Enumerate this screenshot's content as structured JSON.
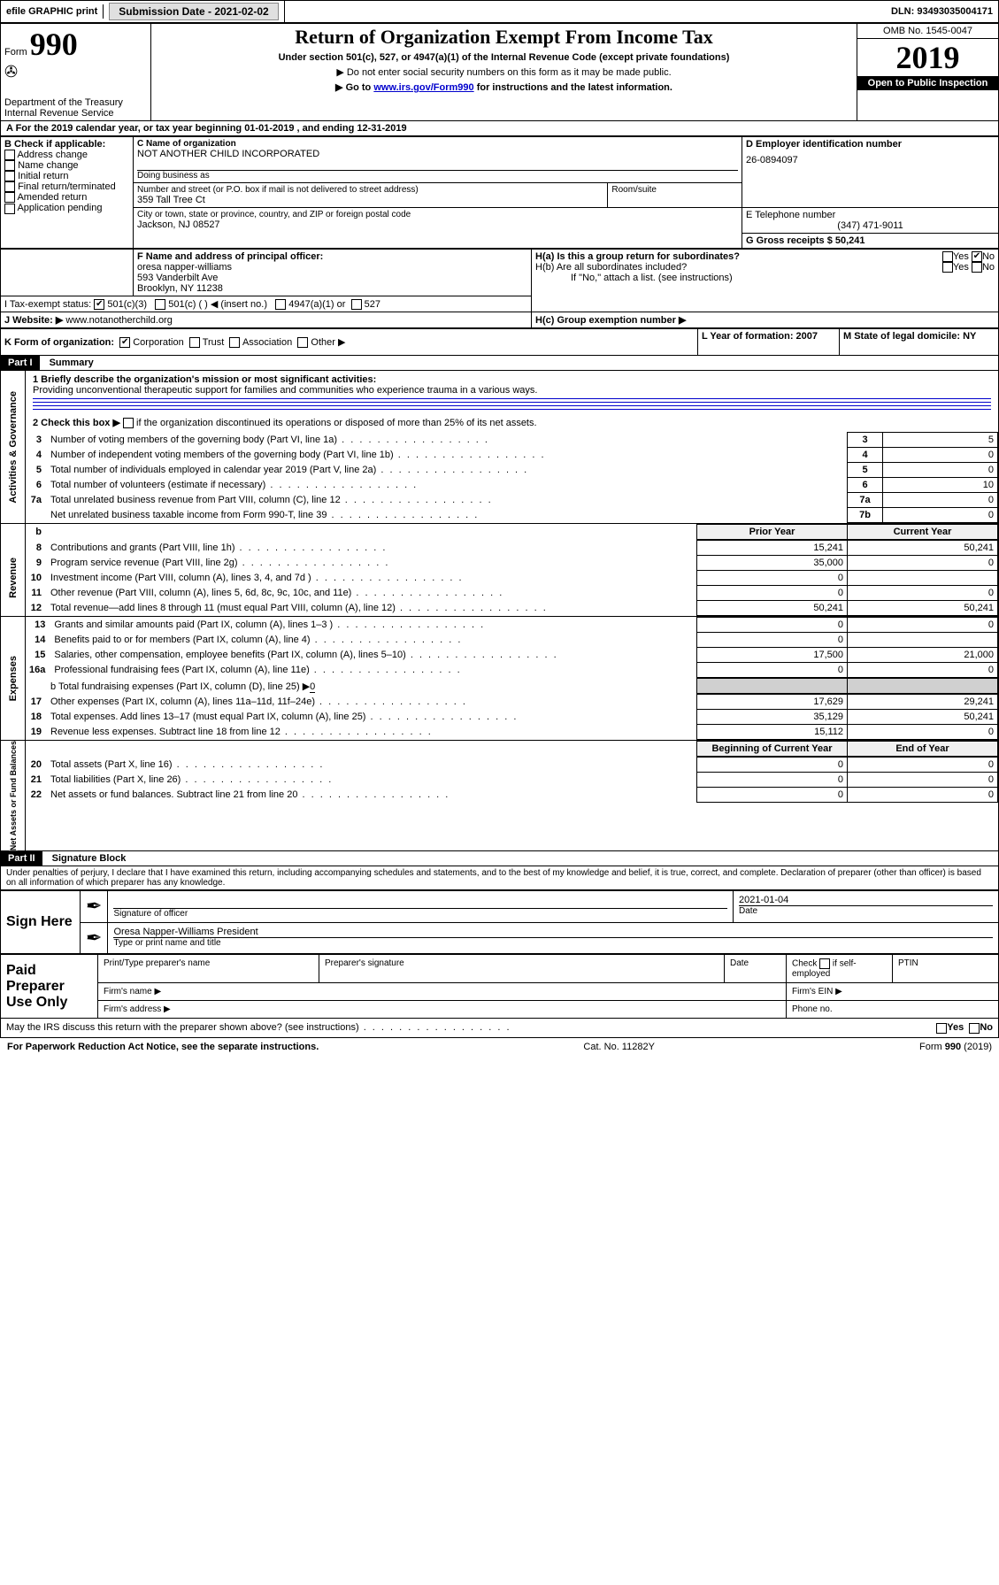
{
  "topbar": {
    "efile_label": "efile GRAPHIC print",
    "submission_label": "Submission Date - 2021-02-02",
    "dln_label": "DLN: 93493035004171"
  },
  "header": {
    "form_label": "Form",
    "form_number": "990",
    "dept": "Department of the Treasury",
    "irs": "Internal Revenue Service",
    "title": "Return of Organization Exempt From Income Tax",
    "subtitle": "Under section 501(c), 527, or 4947(a)(1) of the Internal Revenue Code (except private foundations)",
    "note1": "▶ Do not enter social security numbers on this form as it may be made public.",
    "note2_prefix": "▶ Go to ",
    "note2_link": "www.irs.gov/Form990",
    "note2_suffix": " for instructions and the latest information.",
    "omb": "OMB No. 1545-0047",
    "year": "2019",
    "open_public": "Open to Public Inspection"
  },
  "line_a": "A For the 2019 calendar year, or tax year beginning 01-01-2019   , and ending 12-31-2019",
  "box_b": {
    "label": "B Check if applicable:",
    "opts": [
      "Address change",
      "Name change",
      "Initial return",
      "Final return/terminated",
      "Amended return",
      "Application pending"
    ]
  },
  "box_c": {
    "name_label": "C Name of organization",
    "name": "NOT ANOTHER CHILD INCORPORATED",
    "dba_label": "Doing business as",
    "street_label": "Number and street (or P.O. box if mail is not delivered to street address)",
    "room_label": "Room/suite",
    "street": "359 Tall Tree Ct",
    "city_label": "City or town, state or province, country, and ZIP or foreign postal code",
    "city": "Jackson, NJ  08527"
  },
  "box_d": {
    "label": "D Employer identification number",
    "value": "26-0894097"
  },
  "box_e": {
    "label": "E Telephone number",
    "value": "(347) 471-9011"
  },
  "box_g": {
    "label": "G Gross receipts $ 50,241"
  },
  "box_f": {
    "label": "F  Name and address of principal officer:",
    "line1": "oresa napper-williams",
    "line2": "593 Vanderbilt Ave",
    "line3": "Brooklyn, NY  11238"
  },
  "box_h": {
    "a_label": "H(a)  Is this a group return for subordinates?",
    "b_label": "H(b)  Are all subordinates included?",
    "b_note": "If \"No,\" attach a list. (see instructions)",
    "c_label": "H(c)  Group exemption number ▶",
    "yes": "Yes",
    "no": "No"
  },
  "line_i": {
    "label": "I     Tax-exempt status:",
    "opts": [
      "501(c)(3)",
      "501(c) (   ) ◀ (insert no.)",
      "4947(a)(1) or",
      "527"
    ]
  },
  "line_j": {
    "label": "J    Website: ▶",
    "value": "  www.notanotherchild.org"
  },
  "line_k": {
    "label": "K Form of organization:",
    "opts": [
      "Corporation",
      "Trust",
      "Association",
      "Other ▶"
    ]
  },
  "line_l": {
    "label": "L Year of formation: 2007"
  },
  "line_m": {
    "label": "M State of legal domicile: NY"
  },
  "part1": {
    "header": "Part I",
    "title": "Summary",
    "l1_label": "1  Briefly describe the organization's mission or most significant activities:",
    "l1_text": "Providing unconventional therapeutic support for families and communities who experience trauma in a various ways.",
    "l2_label": "2   Check this box ▶",
    "l2_suffix": "  if the organization discontinued its operations or disposed of more than 25% of its net assets.",
    "rows_top": [
      {
        "n": "3",
        "label": "Number of voting members of the governing body (Part VI, line 1a)",
        "col": "3",
        "val": "5"
      },
      {
        "n": "4",
        "label": "Number of independent voting members of the governing body (Part VI, line 1b)",
        "col": "4",
        "val": "0"
      },
      {
        "n": "5",
        "label": "Total number of individuals employed in calendar year 2019 (Part V, line 2a)",
        "col": "5",
        "val": "0"
      },
      {
        "n": "6",
        "label": "Total number of volunteers (estimate if necessary)",
        "col": "6",
        "val": "10"
      },
      {
        "n": "7a",
        "label": "Total unrelated business revenue from Part VIII, column (C), line 12",
        "col": "7a",
        "val": "0"
      },
      {
        "n": "",
        "label": "Net unrelated business taxable income from Form 990-T, line 39",
        "col": "7b",
        "val": "0"
      }
    ],
    "col_headers": {
      "b": "b",
      "prior": "Prior Year",
      "current": "Current Year"
    },
    "revenue_label": "Revenue",
    "revenue_rows": [
      {
        "n": "8",
        "label": "Contributions and grants (Part VIII, line 1h)",
        "prior": "15,241",
        "cur": "50,241"
      },
      {
        "n": "9",
        "label": "Program service revenue (Part VIII, line 2g)",
        "prior": "35,000",
        "cur": "0"
      },
      {
        "n": "10",
        "label": "Investment income (Part VIII, column (A), lines 3, 4, and 7d )",
        "prior": "0",
        "cur": ""
      },
      {
        "n": "11",
        "label": "Other revenue (Part VIII, column (A), lines 5, 6d, 8c, 9c, 10c, and 11e)",
        "prior": "0",
        "cur": "0"
      },
      {
        "n": "12",
        "label": "Total revenue—add lines 8 through 11 (must equal Part VIII, column (A), line 12)",
        "prior": "50,241",
        "cur": "50,241"
      }
    ],
    "expenses_label": "Expenses",
    "expense_rows": [
      {
        "n": "13",
        "label": "Grants and similar amounts paid (Part IX, column (A), lines 1–3 )",
        "prior": "0",
        "cur": "0"
      },
      {
        "n": "14",
        "label": "Benefits paid to or for members (Part IX, column (A), line 4)",
        "prior": "0",
        "cur": ""
      },
      {
        "n": "15",
        "label": "Salaries, other compensation, employee benefits (Part IX, column (A), lines 5–10)",
        "prior": "17,500",
        "cur": "21,000"
      },
      {
        "n": "16a",
        "label": "Professional fundraising fees (Part IX, column (A), line 11e)",
        "prior": "0",
        "cur": "0"
      }
    ],
    "l16b_label": "b   Total fundraising expenses (Part IX, column (D), line 25) ▶",
    "l16b_val": "0",
    "expense_rows2": [
      {
        "n": "17",
        "label": "Other expenses (Part IX, column (A), lines 11a–11d, 11f–24e)",
        "prior": "17,629",
        "cur": "29,241"
      },
      {
        "n": "18",
        "label": "Total expenses. Add lines 13–17 (must equal Part IX, column (A), line 25)",
        "prior": "35,129",
        "cur": "50,241"
      },
      {
        "n": "19",
        "label": "Revenue less expenses. Subtract line 18 from line 12",
        "prior": "15,112",
        "cur": "0"
      }
    ],
    "net_label": "Net Assets or Fund Balances",
    "net_headers": {
      "begin": "Beginning of Current Year",
      "end": "End of Year"
    },
    "net_rows": [
      {
        "n": "20",
        "label": "Total assets (Part X, line 16)",
        "prior": "0",
        "cur": "0"
      },
      {
        "n": "21",
        "label": "Total liabilities (Part X, line 26)",
        "prior": "0",
        "cur": "0"
      },
      {
        "n": "22",
        "label": "Net assets or fund balances. Subtract line 21 from line 20",
        "prior": "0",
        "cur": "0"
      }
    ],
    "gov_label": "Activities & Governance"
  },
  "part2": {
    "header": "Part II",
    "title": "Signature Block",
    "declaration": "Under penalties of perjury, I declare that I have examined this return, including accompanying schedules and statements, and to the best of my knowledge and belief, it is true, correct, and complete. Declaration of preparer (other than officer) is based on all information of which preparer has any knowledge.",
    "sign_here": "Sign Here",
    "sig_officer": "Signature of officer",
    "sig_date": "2021-01-04",
    "date_label": "Date",
    "officer_name": "Oresa Napper-Williams  President",
    "type_name": "Type or print name and title",
    "paid_preparer": "Paid Preparer Use Only",
    "prep_name": "Print/Type preparer's name",
    "prep_sig": "Preparer's signature",
    "prep_date": "Date",
    "check_self": "Check",
    "self_emp": "if self-employed",
    "ptin": "PTIN",
    "firm_name": "Firm's name   ▶",
    "firm_ein": "Firm's EIN ▶",
    "firm_addr": "Firm's address ▶",
    "phone": "Phone no.",
    "discuss": "May the IRS discuss this return with the preparer shown above? (see instructions)",
    "yes": "Yes",
    "no": "No"
  },
  "footer": {
    "left": "For Paperwork Reduction Act Notice, see the separate instructions.",
    "mid": "Cat. No. 11282Y",
    "right": "Form 990 (2019)"
  }
}
